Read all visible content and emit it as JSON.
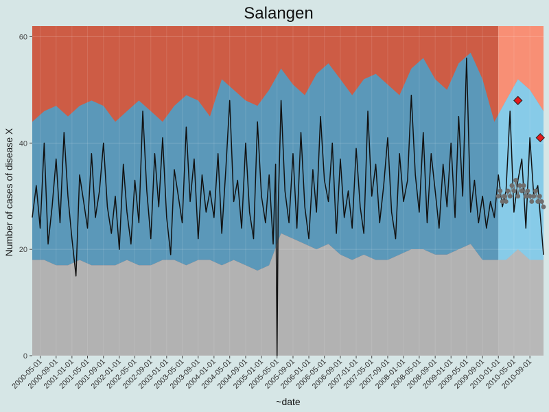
{
  "chart_data": {
    "type": "area",
    "title": "Salangen",
    "xlabel": "~date",
    "ylabel": "Number of cases of disease X",
    "ylim": [
      0,
      62
    ],
    "xlim": [
      "2000-03-01",
      "2010-12-15"
    ],
    "y_ticks": [
      0,
      20,
      40,
      60
    ],
    "x_ticks": [
      "2000-05-01",
      "2000-09-01",
      "2001-01-01",
      "2001-05-01",
      "2001-09-01",
      "2002-01-01",
      "2002-05-01",
      "2002-09-01",
      "2003-01-01",
      "2003-05-01",
      "2003-09-01",
      "2004-01-01",
      "2004-05-01",
      "2004-09-01",
      "2005-01-01",
      "2005-05-01",
      "2005-09-01",
      "2006-01-01",
      "2006-05-01",
      "2006-09-01",
      "2007-01-01",
      "2007-05-01",
      "2007-09-01",
      "2008-01-01",
      "2008-05-01",
      "2008-09-01",
      "2009-01-01",
      "2009-05-01",
      "2009-09-01",
      "2010-01-01",
      "2010-05-01",
      "2010-09-01"
    ],
    "grid": true,
    "legend": "none",
    "prediction_start": "2010-01-01",
    "colors": {
      "background": "#d6e6e6",
      "low_band": "#b2b2b2",
      "normal_band": "#5b98b9",
      "normal_band_shade": "#4a86a6",
      "high_band": "#cd5c45",
      "prediction_low_band": "#b8b8b8",
      "prediction_normal_band": "#87cbe8",
      "prediction_high_band": "#f88f75",
      "observed_line": "#111111",
      "baseline_points": "#6e6e6e",
      "alert_marker": "#e31a1c"
    },
    "series": [
      {
        "type": "band",
        "lower_x": [
          "2000-03-01",
          "2000-06-01",
          "2000-09-01",
          "2000-12-01",
          "2001-03-01",
          "2001-06-01",
          "2001-09-01",
          "2001-12-01",
          "2002-03-01",
          "2002-06-01",
          "2002-09-01",
          "2002-12-01",
          "2003-03-01",
          "2003-06-01",
          "2003-09-01",
          "2003-12-01",
          "2004-03-01",
          "2004-06-01",
          "2004-09-01",
          "2004-12-01",
          "2005-03-01",
          "2005-06-01",
          "2005-09-01",
          "2005-12-01",
          "2006-03-01",
          "2006-06-01",
          "2006-09-01",
          "2006-12-01",
          "2007-03-01",
          "2007-06-01",
          "2007-09-01",
          "2007-12-01",
          "2008-03-01",
          "2008-06-01",
          "2008-09-01",
          "2008-12-01",
          "2009-03-01",
          "2009-06-01",
          "2009-09-01",
          "2009-12-01",
          "2010-03-01",
          "2010-06-01",
          "2010-09-01",
          "2010-12-15"
        ],
        "lower": [
          18,
          18,
          17,
          17,
          18,
          17,
          17,
          17,
          18,
          17,
          17,
          18,
          18,
          17,
          18,
          18,
          17,
          18,
          17,
          16,
          17,
          23,
          22,
          21,
          20,
          21,
          19,
          18,
          19,
          18,
          18,
          19,
          20,
          20,
          19,
          19,
          20,
          21,
          18,
          18,
          18,
          20,
          18,
          18
        ],
        "upper": [
          44,
          46,
          47,
          45,
          47,
          48,
          47,
          44,
          46,
          48,
          46,
          44,
          47,
          49,
          48,
          45,
          52,
          50,
          48,
          47,
          50,
          54,
          51,
          49,
          53,
          55,
          52,
          49,
          52,
          53,
          51,
          49,
          54,
          56,
          52,
          50,
          55,
          57,
          52,
          44,
          48,
          52,
          50,
          46
        ]
      }
    ],
    "observed": {
      "x": [
        "2000-03-01",
        "2000-04-01",
        "2000-05-01",
        "2000-06-01",
        "2000-07-01",
        "2000-08-01",
        "2000-09-01",
        "2000-10-01",
        "2000-11-01",
        "2000-12-01",
        "2001-01-01",
        "2001-02-01",
        "2001-03-01",
        "2001-04-01",
        "2001-05-01",
        "2001-06-01",
        "2001-07-01",
        "2001-08-01",
        "2001-09-01",
        "2001-10-01",
        "2001-11-01",
        "2001-12-01",
        "2002-01-01",
        "2002-02-01",
        "2002-03-01",
        "2002-04-01",
        "2002-05-01",
        "2002-06-01",
        "2002-07-01",
        "2002-08-01",
        "2002-09-01",
        "2002-10-01",
        "2002-11-01",
        "2002-12-01",
        "2003-01-01",
        "2003-02-01",
        "2003-03-01",
        "2003-04-01",
        "2003-05-01",
        "2003-06-01",
        "2003-07-01",
        "2003-08-01",
        "2003-09-01",
        "2003-10-01",
        "2003-11-01",
        "2003-12-01",
        "2004-01-01",
        "2004-02-01",
        "2004-03-01",
        "2004-04-01",
        "2004-05-01",
        "2004-06-01",
        "2004-07-01",
        "2004-08-01",
        "2004-09-01",
        "2004-10-01",
        "2004-11-01",
        "2004-12-01",
        "2005-01-01",
        "2005-02-01",
        "2005-03-01",
        "2005-04-01",
        "2005-04-20",
        "2005-05-01",
        "2005-05-10",
        "2005-06-01",
        "2005-07-01",
        "2005-08-01",
        "2005-09-01",
        "2005-10-01",
        "2005-11-01",
        "2005-12-01",
        "2006-01-01",
        "2006-02-01",
        "2006-03-01",
        "2006-04-01",
        "2006-05-01",
        "2006-06-01",
        "2006-07-01",
        "2006-08-01",
        "2006-09-01",
        "2006-10-01",
        "2006-11-01",
        "2006-12-01",
        "2007-01-01",
        "2007-02-01",
        "2007-03-01",
        "2007-04-01",
        "2007-05-01",
        "2007-06-01",
        "2007-07-01",
        "2007-08-01",
        "2007-09-01",
        "2007-10-01",
        "2007-11-01",
        "2007-12-01",
        "2008-01-01",
        "2008-02-01",
        "2008-03-01",
        "2008-04-01",
        "2008-05-01",
        "2008-06-01",
        "2008-07-01",
        "2008-08-01",
        "2008-09-01",
        "2008-10-01",
        "2008-11-01",
        "2008-12-01",
        "2009-01-01",
        "2009-02-01",
        "2009-03-01",
        "2009-04-01",
        "2009-05-01",
        "2009-06-01",
        "2009-07-01",
        "2009-08-01",
        "2009-09-01",
        "2009-10-01",
        "2009-11-01",
        "2009-12-01",
        "2010-01-01",
        "2010-02-01",
        "2010-03-01",
        "2010-04-01",
        "2010-05-01",
        "2010-06-01",
        "2010-07-01",
        "2010-08-01",
        "2010-09-01",
        "2010-10-01",
        "2010-11-01",
        "2010-12-15"
      ],
      "y": [
        26,
        32,
        24,
        40,
        21,
        28,
        37,
        25,
        42,
        30,
        22,
        15,
        34,
        29,
        24,
        38,
        26,
        31,
        40,
        28,
        23,
        30,
        20,
        36,
        27,
        21,
        33,
        25,
        46,
        31,
        22,
        38,
        28,
        41,
        26,
        19,
        35,
        30,
        25,
        43,
        29,
        37,
        22,
        34,
        27,
        31,
        26,
        38,
        23,
        35,
        48,
        29,
        33,
        24,
        40,
        27,
        22,
        44,
        30,
        25,
        34,
        21,
        36,
        0,
        28,
        48,
        31,
        25,
        38,
        24,
        42,
        28,
        22,
        35,
        27,
        45,
        33,
        29,
        40,
        23,
        37,
        26,
        31,
        24,
        39,
        28,
        23,
        46,
        30,
        36,
        25,
        32,
        41,
        27,
        22,
        38,
        29,
        33,
        49,
        34,
        27,
        42,
        25,
        38,
        31,
        24,
        36,
        28,
        40,
        26,
        45,
        30,
        56,
        27,
        33,
        25,
        30,
        24,
        29,
        26,
        34,
        28,
        31,
        46,
        27,
        33,
        37,
        24,
        41,
        30,
        32,
        19
      ]
    },
    "baseline_points": {
      "x": [
        "2010-01-01",
        "2010-01-15",
        "2010-02-01",
        "2010-02-15",
        "2010-03-01",
        "2010-03-15",
        "2010-04-01",
        "2010-04-15",
        "2010-05-01",
        "2010-05-15",
        "2010-06-01",
        "2010-06-15",
        "2010-07-01",
        "2010-07-15",
        "2010-08-01",
        "2010-08-15",
        "2010-09-01",
        "2010-09-15",
        "2010-10-01",
        "2010-10-15",
        "2010-11-01",
        "2010-11-15",
        "2010-12-01",
        "2010-12-15"
      ],
      "y": [
        30,
        31,
        29,
        30,
        29,
        31,
        30,
        32,
        31,
        33,
        30,
        32,
        31,
        32,
        30,
        31,
        30,
        29,
        30,
        31,
        29,
        30,
        29,
        28
      ]
    },
    "alerts": {
      "x": [
        "2010-06-01",
        "2010-11-20"
      ],
      "y": [
        48,
        41
      ]
    }
  }
}
